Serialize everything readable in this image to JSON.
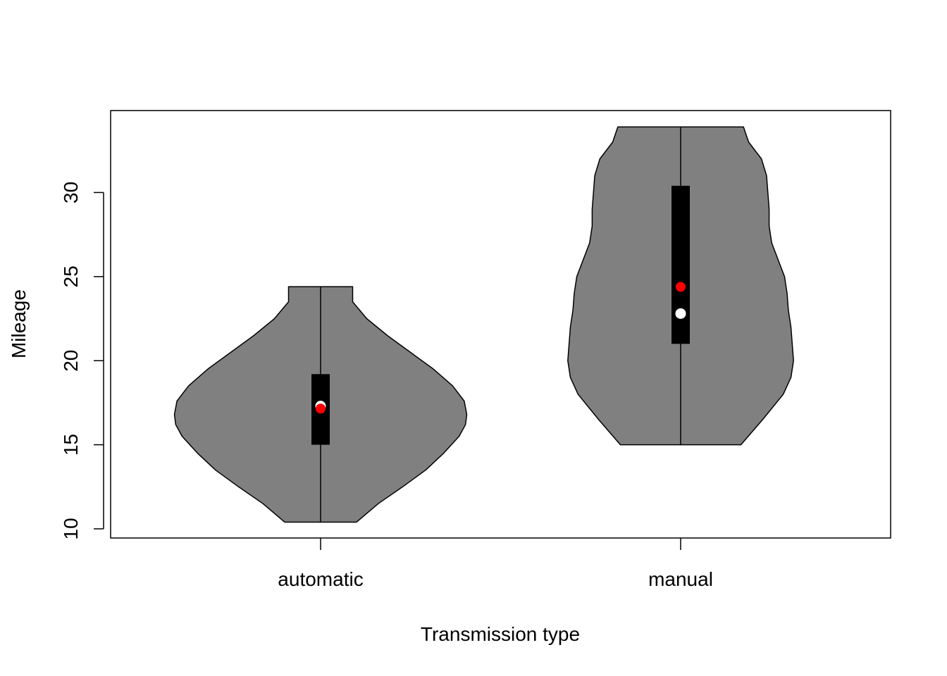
{
  "chart_data": {
    "type": "violin",
    "xlabel": "Transmission type",
    "ylabel": "Mileage",
    "categories": [
      "automatic",
      "manual"
    ],
    "yticks": [
      10,
      15,
      20,
      25,
      30
    ],
    "ylim": [
      10,
      34.8
    ],
    "grid": false,
    "series": [
      {
        "category": "automatic",
        "min": 10.4,
        "max": 24.4,
        "q1": 15.0,
        "median": 17.3,
        "q3": 19.2,
        "mean": 17.15,
        "density_profile": [
          [
            10.4,
            2.8
          ],
          [
            11.5,
            4.5
          ],
          [
            12.5,
            6.4
          ],
          [
            13.5,
            8.2
          ],
          [
            14.5,
            9.6
          ],
          [
            15.5,
            10.8
          ],
          [
            16.2,
            11.3
          ],
          [
            16.8,
            11.4
          ],
          [
            17.6,
            11.2
          ],
          [
            18.5,
            10.3
          ],
          [
            19.5,
            8.8
          ],
          [
            20.5,
            7.0
          ],
          [
            21.5,
            5.2
          ],
          [
            22.5,
            3.6
          ],
          [
            23.5,
            2.5
          ],
          [
            24.4,
            2.5
          ]
        ]
      },
      {
        "category": "manual",
        "min": 15.0,
        "max": 33.9,
        "q1": 21.0,
        "median": 22.8,
        "q3": 30.4,
        "mean": 24.39,
        "density_profile": [
          [
            15.0,
            4.7
          ],
          [
            16.5,
            6.4
          ],
          [
            18.0,
            8.0
          ],
          [
            19.0,
            8.6
          ],
          [
            20.0,
            8.8
          ],
          [
            21.0,
            8.7
          ],
          [
            22.0,
            8.6
          ],
          [
            23.0,
            8.4
          ],
          [
            24.0,
            8.3
          ],
          [
            25.0,
            8.1
          ],
          [
            26.0,
            7.6
          ],
          [
            27.0,
            7.1
          ],
          [
            28.0,
            6.9
          ],
          [
            29.0,
            6.9
          ],
          [
            30.0,
            6.8
          ],
          [
            31.0,
            6.7
          ],
          [
            32.0,
            6.3
          ],
          [
            33.0,
            5.3
          ],
          [
            33.9,
            4.9
          ]
        ]
      }
    ],
    "colors": {
      "violin_fill": "#808080",
      "violin_stroke": "#000000",
      "box_fill": "#000000",
      "median_point": "#ffffff",
      "mean_point": "#ff0000"
    }
  }
}
